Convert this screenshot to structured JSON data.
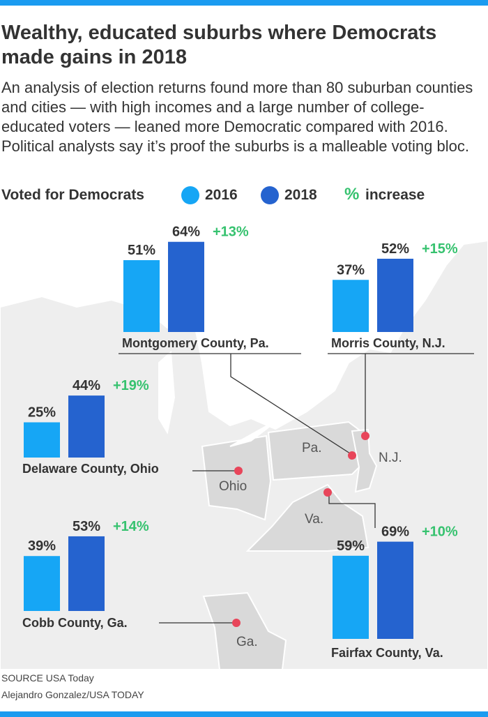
{
  "header": {
    "title": "Wealthy, educated suburbs where Democrats made gains in 2018",
    "subtitle": "An analysis of election returns found more than 80 suburban counties and cities — with high incomes and a large number of college-educated voters — leaned more Democratic compared with 2016. Political analysts say it’s proof the suburbs is a malleable voting bloc."
  },
  "legend": {
    "label": "Voted for Democrats",
    "series_2016": "2016",
    "series_2018": "2018",
    "increase_symbol": "%",
    "increase_label": "increase"
  },
  "colors": {
    "y2016": "#16a6f5",
    "y2018": "#2563cf",
    "increase": "#36c26f",
    "state_highlight": "#d9d9d9",
    "map_land": "#eeeeee",
    "marker": "#e8455a"
  },
  "map_labels": [
    "Pa.",
    "N.J.",
    "Ohio",
    "Va.",
    "Ga."
  ],
  "chart_data": {
    "type": "bar",
    "title": "Voted for Democrats",
    "series": [
      {
        "name": "2016"
      },
      {
        "name": "2018"
      }
    ],
    "counties": [
      {
        "name": "Montgomery County, Pa.",
        "v2016": 51,
        "v2018": 64,
        "increase": 13,
        "label_2016": "51%",
        "label_2018": "64%",
        "label_increase": "+13%"
      },
      {
        "name": "Morris County, N.J.",
        "v2016": 37,
        "v2018": 52,
        "increase": 15,
        "label_2016": "37%",
        "label_2018": "52%",
        "label_increase": "+15%"
      },
      {
        "name": "Delaware County, Ohio",
        "v2016": 25,
        "v2018": 44,
        "increase": 19,
        "label_2016": "25%",
        "label_2018": "44%",
        "label_increase": "+19%"
      },
      {
        "name": "Cobb County, Ga.",
        "v2016": 39,
        "v2018": 53,
        "increase": 14,
        "label_2016": "39%",
        "label_2018": "53%",
        "label_increase": "+14%"
      },
      {
        "name": "Fairfax County, Va.",
        "v2016": 59,
        "v2018": 69,
        "increase": 10,
        "label_2016": "59%",
        "label_2018": "69%",
        "label_increase": "+10%"
      }
    ]
  },
  "footer": {
    "source": "SOURCE USA Today",
    "credit": "Alejandro Gonzalez/USA TODAY"
  }
}
